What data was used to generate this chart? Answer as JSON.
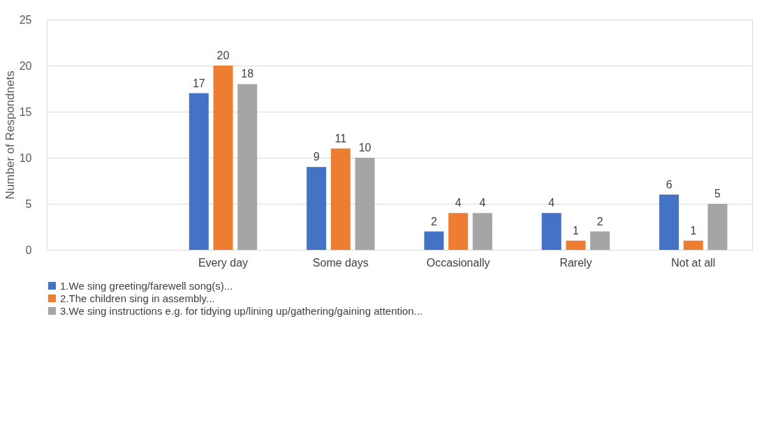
{
  "chart_data": {
    "type": "bar",
    "ylabel": "Number of Respondnets",
    "categories": [
      null,
      "Every day",
      "Some days",
      "Occasionally",
      "Rarely",
      "Not at all"
    ],
    "series": [
      {
        "name": "1.We sing greeting/farewell song(s)...",
        "color": "#4472c4",
        "values": [
          null,
          17,
          9,
          2,
          4,
          6
        ]
      },
      {
        "name": "2.The children sing in assembly...",
        "color": "#ed7d31",
        "values": [
          null,
          20,
          11,
          4,
          1,
          1
        ]
      },
      {
        "name": "3.We sing instructions e.g. for tidying up/lining up/gathering/gaining attention...",
        "color": "#a5a5a5",
        "values": [
          null,
          18,
          10,
          4,
          2,
          5
        ]
      }
    ],
    "ylim": [
      0,
      25
    ],
    "yticks": [
      0,
      5,
      10,
      15,
      20,
      25
    ],
    "grid": "y",
    "legend": "bottom left",
    "data_labels": true
  }
}
